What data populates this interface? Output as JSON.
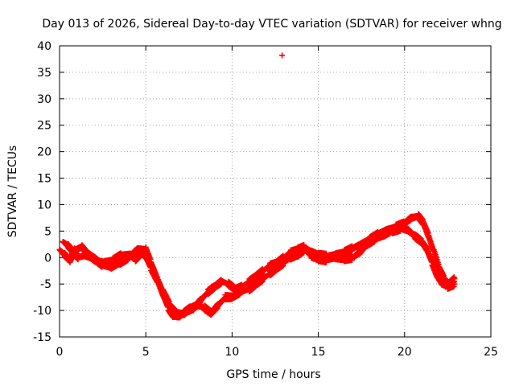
{
  "chart_data": {
    "type": "scatter",
    "title": "Day 013 of 2026, Sidereal Day-to-day VTEC variation (SDTVAR) for receiver whng",
    "xlabel": "GPS time / hours",
    "ylabel": "SDTVAR / TECUs",
    "xlim": [
      0,
      25
    ],
    "ylim": [
      -15,
      40
    ],
    "xticks": [
      0,
      5,
      10,
      15,
      20,
      25
    ],
    "yticks": [
      -15,
      -10,
      -5,
      0,
      5,
      10,
      15,
      20,
      25,
      30,
      35,
      40
    ],
    "xtick_labels": [
      "0",
      "5",
      "10",
      "15",
      "20",
      "25"
    ],
    "ytick_labels": [
      "-15",
      "-10",
      "-5",
      "0",
      "5",
      "10",
      "15",
      "20",
      "25",
      "30",
      "35",
      "40"
    ],
    "grid": true,
    "marker_color": "#ff0000",
    "series": [
      {
        "name": "whng",
        "tracks": [
          [
            [
              0.0,
              1.5
            ],
            [
              0.3,
              0.5
            ],
            [
              0.6,
              -0.5
            ],
            [
              0.9,
              1.5
            ],
            [
              1.3,
              2.0
            ],
            [
              1.7,
              0.5
            ],
            [
              2.1,
              -0.5
            ],
            [
              2.6,
              -1.0
            ],
            [
              3.1,
              -0.5
            ],
            [
              3.6,
              0.5
            ],
            [
              4.1,
              0.5
            ],
            [
              4.4,
              -0.3
            ],
            [
              4.7,
              0.8
            ],
            [
              5.0,
              0.3
            ],
            [
              5.3,
              -2.0
            ],
            [
              5.7,
              -4.5
            ],
            [
              6.0,
              -7.0
            ],
            [
              6.3,
              -9.5
            ],
            [
              6.6,
              -11.0
            ],
            [
              7.0,
              -11.0
            ],
            [
              7.4,
              -10.0
            ],
            [
              7.8,
              -9.5
            ],
            [
              8.2,
              -8.0
            ],
            [
              8.6,
              -6.5
            ],
            [
              9.0,
              -5.5
            ],
            [
              9.4,
              -4.5
            ],
            [
              9.8,
              -5.0
            ],
            [
              10.2,
              -6.0
            ],
            [
              10.6,
              -5.5
            ],
            [
              11.0,
              -4.5
            ],
            [
              11.4,
              -3.5
            ],
            [
              11.8,
              -2.5
            ],
            [
              12.2,
              -1.5
            ],
            [
              12.6,
              -1.0
            ],
            [
              13.0,
              0.0
            ],
            [
              13.4,
              1.0
            ],
            [
              13.8,
              1.5
            ],
            [
              14.2,
              2.0
            ],
            [
              14.6,
              1.0
            ],
            [
              15.0,
              0.5
            ],
            [
              15.5,
              0.3
            ],
            [
              16.0,
              0.5
            ],
            [
              16.5,
              1.0
            ],
            [
              17.0,
              1.8
            ],
            [
              17.5,
              2.5
            ],
            [
              18.0,
              3.5
            ],
            [
              18.5,
              4.5
            ],
            [
              19.0,
              5.2
            ],
            [
              19.5,
              5.8
            ],
            [
              20.0,
              6.5
            ],
            [
              20.4,
              7.5
            ],
            [
              20.8,
              7.8
            ],
            [
              21.1,
              6.5
            ],
            [
              21.4,
              4.0
            ],
            [
              21.7,
              1.0
            ],
            [
              22.0,
              -2.0
            ],
            [
              22.3,
              -4.0
            ],
            [
              22.6,
              -5.0
            ],
            [
              22.9,
              -4.0
            ]
          ],
          [
            [
              0.2,
              3.0
            ],
            [
              0.5,
              2.2
            ],
            [
              0.8,
              1.0
            ],
            [
              1.1,
              0.0
            ],
            [
              1.5,
              0.5
            ],
            [
              2.0,
              -0.2
            ],
            [
              2.5,
              -1.5
            ],
            [
              3.0,
              -1.8
            ],
            [
              3.5,
              -1.0
            ],
            [
              4.0,
              0.0
            ],
            [
              4.5,
              1.5
            ],
            [
              5.0,
              1.5
            ],
            [
              5.3,
              -1.0
            ],
            [
              5.6,
              -3.5
            ],
            [
              6.0,
              -6.5
            ],
            [
              6.4,
              -9.0
            ],
            [
              6.8,
              -10.5
            ],
            [
              7.2,
              -10.5
            ],
            [
              7.6,
              -9.5
            ],
            [
              8.0,
              -9.0
            ],
            [
              8.4,
              -9.5
            ],
            [
              8.8,
              -10.5
            ],
            [
              9.2,
              -9.0
            ],
            [
              9.6,
              -7.5
            ],
            [
              10.0,
              -7.5
            ],
            [
              10.5,
              -6.5
            ],
            [
              11.0,
              -6.0
            ],
            [
              11.4,
              -5.0
            ],
            [
              11.8,
              -4.0
            ],
            [
              12.2,
              -3.0
            ],
            [
              12.6,
              -2.0
            ],
            [
              13.0,
              -1.0
            ],
            [
              13.4,
              0.0
            ],
            [
              13.8,
              0.5
            ],
            [
              14.2,
              1.5
            ],
            [
              14.6,
              0.3
            ],
            [
              15.0,
              -0.3
            ],
            [
              15.5,
              -0.5
            ],
            [
              16.0,
              0.0
            ],
            [
              16.5,
              -0.3
            ],
            [
              17.0,
              0.0
            ],
            [
              17.4,
              1.0
            ],
            [
              17.8,
              2.5
            ],
            [
              18.3,
              3.5
            ],
            [
              18.8,
              4.2
            ],
            [
              19.3,
              5.0
            ],
            [
              19.8,
              5.5
            ],
            [
              20.2,
              5.2
            ],
            [
              20.6,
              4.0
            ],
            [
              21.0,
              3.0
            ],
            [
              21.3,
              1.5
            ],
            [
              21.6,
              -1.0
            ],
            [
              21.9,
              -3.5
            ],
            [
              22.2,
              -5.0
            ],
            [
              22.5,
              -5.5
            ],
            [
              22.9,
              -5.0
            ]
          ]
        ],
        "outliers": [
          [
            12.9,
            38.2
          ]
        ]
      }
    ]
  }
}
